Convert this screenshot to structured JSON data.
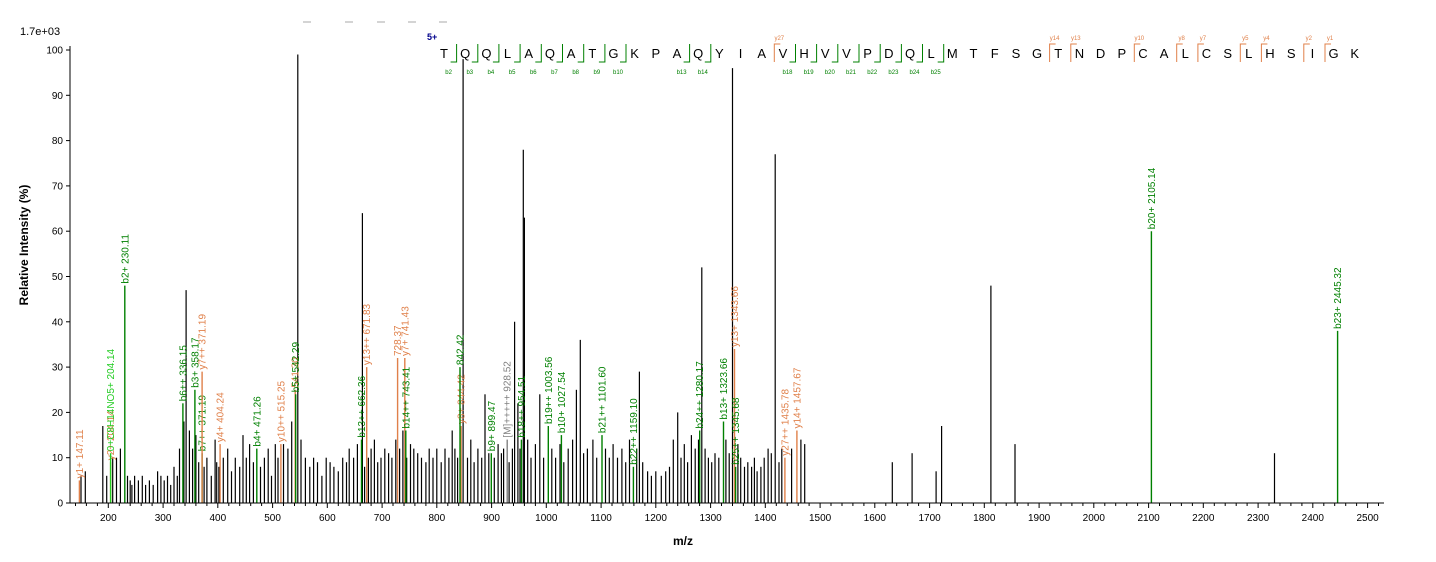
{
  "chart_data": {
    "type": "bar",
    "scale_label": "1.7e+03",
    "xlabel": "m/z",
    "ylabel": "Relative   Intensity (%)",
    "xlim": [
      130,
      2530
    ],
    "ylim": [
      0,
      100
    ],
    "x_ticks": [
      200,
      300,
      400,
      500,
      600,
      700,
      800,
      900,
      1000,
      1100,
      1200,
      1300,
      1400,
      1500,
      1600,
      1700,
      1800,
      1900,
      2000,
      2100,
      2200,
      2300,
      2400,
      2500
    ],
    "y_ticks": [
      0,
      10,
      20,
      30,
      40,
      50,
      60,
      70,
      80,
      90,
      100
    ],
    "colors": {
      "b_ion": "#008000",
      "y_ion": "#e0804a",
      "neutral": "#808080",
      "b_ion_light": "#22cc22",
      "charge": "#00008b",
      "peak": "#000000"
    },
    "charge_label": "5+",
    "sequence": [
      "T",
      "Q",
      "Q",
      "L",
      "A",
      "Q",
      "A",
      "T",
      "G",
      "K",
      "P",
      "A",
      "Q",
      "Y",
      "I",
      "A",
      "V",
      "H",
      "V",
      "V",
      "P",
      "D",
      "Q",
      "L",
      "M",
      "T",
      "F",
      "S",
      "G",
      "T",
      "N",
      "D",
      "P",
      "C",
      "A",
      "L",
      "C",
      "S",
      "L",
      "H",
      "S",
      "I",
      "G",
      "K"
    ],
    "b_markers": [
      {
        "after": 1,
        "label": "b2"
      },
      {
        "after": 2,
        "label": "b3"
      },
      {
        "after": 3,
        "label": "b4"
      },
      {
        "after": 4,
        "label": "b5"
      },
      {
        "after": 5,
        "label": "b6"
      },
      {
        "after": 6,
        "label": "b7"
      },
      {
        "after": 7,
        "label": "b8"
      },
      {
        "after": 8,
        "label": "b9"
      },
      {
        "after": 9,
        "label": "b10"
      },
      {
        "after": 12,
        "label": "b13"
      },
      {
        "after": 13,
        "label": "b14"
      },
      {
        "after": 17,
        "label": "b18"
      },
      {
        "after": 18,
        "label": "b19"
      },
      {
        "after": 19,
        "label": "b20"
      },
      {
        "after": 20,
        "label": "b21"
      },
      {
        "after": 21,
        "label": "b22"
      },
      {
        "after": 22,
        "label": "b23"
      },
      {
        "after": 23,
        "label": "b24"
      },
      {
        "after": 24,
        "label": "b25"
      }
    ],
    "y_markers": [
      {
        "after": 16,
        "label": "y27"
      },
      {
        "after": 29,
        "label": "y14"
      },
      {
        "after": 30,
        "label": "y13"
      },
      {
        "after": 33,
        "label": "y10"
      },
      {
        "after": 35,
        "label": "y8"
      },
      {
        "after": 36,
        "label": "y7"
      },
      {
        "after": 38,
        "label": "y5"
      },
      {
        "after": 39,
        "label": "y4"
      },
      {
        "after": 41,
        "label": "y2"
      },
      {
        "after": 42,
        "label": "y1"
      }
    ],
    "labeled_peaks": [
      {
        "mz": 147.11,
        "intensity": 5,
        "label": "y1+ 147.11",
        "type": "y"
      },
      {
        "mz": 204.14,
        "intensity": 9,
        "label": "y2+ 204.14",
        "type": "y"
      },
      {
        "mz": 204.14,
        "intensity": 11,
        "label": "0+C8H14NO5+ 204.14",
        "type": "b_light"
      },
      {
        "mz": 230.11,
        "intensity": 48,
        "label": "b2+ 230.11",
        "type": "b"
      },
      {
        "mz": 336.15,
        "intensity": 22,
        "label": "b6++ 336.15",
        "type": "b"
      },
      {
        "mz": 358.17,
        "intensity": 25,
        "label": "b3+ 358.17",
        "type": "b"
      },
      {
        "mz": 371.19,
        "intensity": 11,
        "label": "b7++ 371.19",
        "type": "b"
      },
      {
        "mz": 371.19,
        "intensity": 29,
        "label": "y7++ 371.19",
        "type": "y"
      },
      {
        "mz": 404.24,
        "intensity": 13,
        "label": "y4+ 404.24",
        "type": "y"
      },
      {
        "mz": 471.26,
        "intensity": 12,
        "label": "b4+ 471.26",
        "type": "b"
      },
      {
        "mz": 515.25,
        "intensity": 13,
        "label": "y10++ 515.25",
        "type": "y"
      },
      {
        "mz": 541.3,
        "intensity": 25,
        "label": "541.30",
        "type": "y"
      },
      {
        "mz": 542.29,
        "intensity": 24,
        "label": "b5+ 542.29",
        "type": "b"
      },
      {
        "mz": 662.36,
        "intensity": 14,
        "label": "b13++ 662.36",
        "type": "b"
      },
      {
        "mz": 671.83,
        "intensity": 30,
        "label": "y13++ 671.83",
        "type": "y"
      },
      {
        "mz": 728.37,
        "intensity": 32,
        "label": "728.37",
        "type": "y"
      },
      {
        "mz": 741.43,
        "intensity": 32,
        "label": "y7+ 741.43",
        "type": "y"
      },
      {
        "mz": 743.41,
        "intensity": 16,
        "label": "b14++ 743.41",
        "type": "b"
      },
      {
        "mz": 844.42,
        "intensity": 17,
        "label": "y8+ 844.42",
        "type": "y"
      },
      {
        "mz": 842.42,
        "intensity": 30,
        "label": "842.42",
        "type": "b"
      },
      {
        "mz": 899.47,
        "intensity": 11,
        "label": "b9+ 899.47",
        "type": "b"
      },
      {
        "mz": 928.52,
        "intensity": 14,
        "label": "[M]+++++ 928.52",
        "type": "neutral"
      },
      {
        "mz": 954.51,
        "intensity": 14,
        "label": "b18++ 954.51",
        "type": "b"
      },
      {
        "mz": 1003.56,
        "intensity": 17,
        "label": "b19++ 1003.56",
        "type": "b"
      },
      {
        "mz": 1027.54,
        "intensity": 15,
        "label": "b10+ 1027.54",
        "type": "b"
      },
      {
        "mz": 1101.6,
        "intensity": 15,
        "label": "b21++ 1101.60",
        "type": "b"
      },
      {
        "mz": 1159.1,
        "intensity": 8,
        "label": "b22++ 1159.10",
        "type": "b"
      },
      {
        "mz": 1280.17,
        "intensity": 16,
        "label": "b24++ 1280.17",
        "type": "b"
      },
      {
        "mz": 1323.66,
        "intensity": 18,
        "label": "b13+ 1323.66",
        "type": "b"
      },
      {
        "mz": 1343.66,
        "intensity": 34,
        "label": "y13+ 1343.66",
        "type": "y"
      },
      {
        "mz": 1345.68,
        "intensity": 8,
        "label": "b25++ 1345.68",
        "type": "b"
      },
      {
        "mz": 1435.78,
        "intensity": 10,
        "label": "y27++ 1435.78",
        "type": "y"
      },
      {
        "mz": 1457.67,
        "intensity": 16,
        "label": "y14+ 1457.67",
        "type": "y"
      },
      {
        "mz": 2105.14,
        "intensity": 60,
        "label": "b20+ 2105.14",
        "type": "b"
      },
      {
        "mz": 2445.32,
        "intensity": 38,
        "label": "b23+ 2445.32",
        "type": "b"
      }
    ],
    "peaks": [
      [
        150,
        6
      ],
      [
        158,
        7
      ],
      [
        190,
        17
      ],
      [
        197,
        6
      ],
      [
        208,
        10
      ],
      [
        215,
        10
      ],
      [
        222,
        12
      ],
      [
        235,
        6
      ],
      [
        240,
        5
      ],
      [
        243,
        4
      ],
      [
        248,
        6
      ],
      [
        255,
        5
      ],
      [
        262,
        6
      ],
      [
        268,
        4
      ],
      [
        275,
        5
      ],
      [
        282,
        4
      ],
      [
        290,
        7
      ],
      [
        296,
        6
      ],
      [
        302,
        5
      ],
      [
        308,
        6
      ],
      [
        314,
        4
      ],
      [
        320,
        8
      ],
      [
        326,
        6
      ],
      [
        330,
        12
      ],
      [
        338,
        18
      ],
      [
        342,
        47
      ],
      [
        348,
        16
      ],
      [
        354,
        12
      ],
      [
        360,
        15
      ],
      [
        365,
        9
      ],
      [
        375,
        8
      ],
      [
        380,
        10
      ],
      [
        388,
        6
      ],
      [
        395,
        14
      ],
      [
        398,
        9
      ],
      [
        402,
        8
      ],
      [
        410,
        10
      ],
      [
        418,
        12
      ],
      [
        425,
        7
      ],
      [
        432,
        10
      ],
      [
        440,
        8
      ],
      [
        446,
        15
      ],
      [
        452,
        10
      ],
      [
        458,
        13
      ],
      [
        465,
        9
      ],
      [
        478,
        8
      ],
      [
        485,
        10
      ],
      [
        492,
        12
      ],
      [
        498,
        6
      ],
      [
        505,
        13
      ],
      [
        510,
        10
      ],
      [
        520,
        13
      ],
      [
        528,
        12
      ],
      [
        535,
        18
      ],
      [
        546,
        99
      ],
      [
        552,
        14
      ],
      [
        560,
        10
      ],
      [
        568,
        8
      ],
      [
        575,
        10
      ],
      [
        582,
        9
      ],
      [
        590,
        6
      ],
      [
        598,
        10
      ],
      [
        605,
        9
      ],
      [
        612,
        8
      ],
      [
        620,
        7
      ],
      [
        628,
        10
      ],
      [
        635,
        9
      ],
      [
        640,
        12
      ],
      [
        648,
        10
      ],
      [
        655,
        13
      ],
      [
        664,
        64
      ],
      [
        668,
        8
      ],
      [
        675,
        10
      ],
      [
        680,
        12
      ],
      [
        686,
        14
      ],
      [
        692,
        9
      ],
      [
        698,
        10
      ],
      [
        705,
        12
      ],
      [
        712,
        11
      ],
      [
        718,
        10
      ],
      [
        725,
        14
      ],
      [
        732,
        12
      ],
      [
        738,
        16
      ],
      [
        745,
        10
      ],
      [
        752,
        13
      ],
      [
        758,
        12
      ],
      [
        765,
        11
      ],
      [
        772,
        10
      ],
      [
        780,
        9
      ],
      [
        786,
        12
      ],
      [
        793,
        10
      ],
      [
        800,
        12
      ],
      [
        808,
        9
      ],
      [
        815,
        12
      ],
      [
        822,
        10
      ],
      [
        828,
        16
      ],
      [
        833,
        12
      ],
      [
        838,
        10
      ],
      [
        848,
        98
      ],
      [
        856,
        10
      ],
      [
        862,
        14
      ],
      [
        868,
        9
      ],
      [
        875,
        12
      ],
      [
        882,
        10
      ],
      [
        888,
        24
      ],
      [
        895,
        11
      ],
      [
        905,
        10
      ],
      [
        912,
        13
      ],
      [
        918,
        11
      ],
      [
        922,
        12
      ],
      [
        932,
        9
      ],
      [
        938,
        12
      ],
      [
        942,
        40
      ],
      [
        948,
        22
      ],
      [
        952,
        12
      ],
      [
        958,
        78
      ],
      [
        960,
        63
      ],
      [
        966,
        14
      ],
      [
        972,
        10
      ],
      [
        980,
        13
      ],
      [
        988,
        24
      ],
      [
        995,
        10
      ],
      [
        1010,
        12
      ],
      [
        1017,
        10
      ],
      [
        1025,
        13
      ],
      [
        1032,
        9
      ],
      [
        1040,
        12
      ],
      [
        1048,
        14
      ],
      [
        1055,
        25
      ],
      [
        1062,
        36
      ],
      [
        1068,
        11
      ],
      [
        1075,
        12
      ],
      [
        1085,
        14
      ],
      [
        1092,
        10
      ],
      [
        1108,
        12
      ],
      [
        1115,
        10
      ],
      [
        1122,
        13
      ],
      [
        1130,
        10
      ],
      [
        1138,
        12
      ],
      [
        1145,
        9
      ],
      [
        1152,
        14
      ],
      [
        1165,
        12
      ],
      [
        1170,
        29
      ],
      [
        1176,
        9
      ],
      [
        1185,
        7
      ],
      [
        1192,
        6
      ],
      [
        1200,
        7
      ],
      [
        1210,
        6
      ],
      [
        1218,
        7
      ],
      [
        1225,
        8
      ],
      [
        1232,
        14
      ],
      [
        1240,
        20
      ],
      [
        1246,
        10
      ],
      [
        1252,
        13
      ],
      [
        1258,
        9
      ],
      [
        1265,
        15
      ],
      [
        1272,
        12
      ],
      [
        1278,
        14
      ],
      [
        1284,
        52
      ],
      [
        1290,
        12
      ],
      [
        1296,
        10
      ],
      [
        1302,
        9
      ],
      [
        1308,
        11
      ],
      [
        1315,
        10
      ],
      [
        1328,
        14
      ],
      [
        1334,
        11
      ],
      [
        1340,
        96
      ],
      [
        1350,
        13
      ],
      [
        1355,
        10
      ],
      [
        1362,
        8
      ],
      [
        1368,
        9
      ],
      [
        1375,
        8
      ],
      [
        1380,
        10
      ],
      [
        1385,
        7
      ],
      [
        1392,
        8
      ],
      [
        1398,
        10
      ],
      [
        1405,
        12
      ],
      [
        1411,
        11
      ],
      [
        1418,
        77
      ],
      [
        1425,
        9
      ],
      [
        1430,
        12
      ],
      [
        1448,
        12
      ],
      [
        1465,
        14
      ],
      [
        1472,
        13
      ],
      [
        1632,
        9
      ],
      [
        1668,
        11
      ],
      [
        1712,
        7
      ],
      [
        1722,
        17
      ],
      [
        1812,
        48
      ],
      [
        1856,
        13
      ],
      [
        2330,
        11
      ]
    ]
  }
}
